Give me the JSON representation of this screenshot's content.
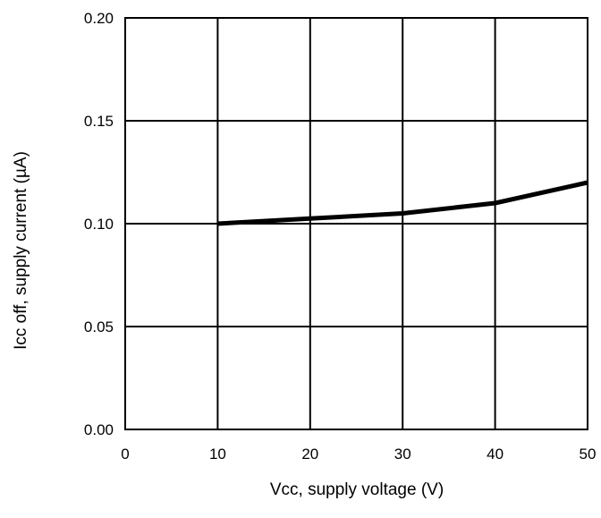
{
  "chart_data": {
    "type": "line",
    "title": "",
    "xlabel": "Vcc, supply voltage (V)",
    "ylabel": "Icc off, supply current (µA)",
    "xlim": [
      0,
      50
    ],
    "ylim": [
      0.0,
      0.2
    ],
    "x_ticks": [
      "0",
      "10",
      "20",
      "30",
      "40",
      "50"
    ],
    "y_ticks": [
      "0.00",
      "0.05",
      "0.10",
      "0.15",
      "0.20"
    ],
    "grid": true,
    "legend": "none",
    "series": [
      {
        "x": [
          10,
          20,
          30,
          40,
          50
        ],
        "y": [
          0.1,
          0.1025,
          0.105,
          0.11,
          0.12
        ],
        "color": "#000000"
      }
    ]
  }
}
